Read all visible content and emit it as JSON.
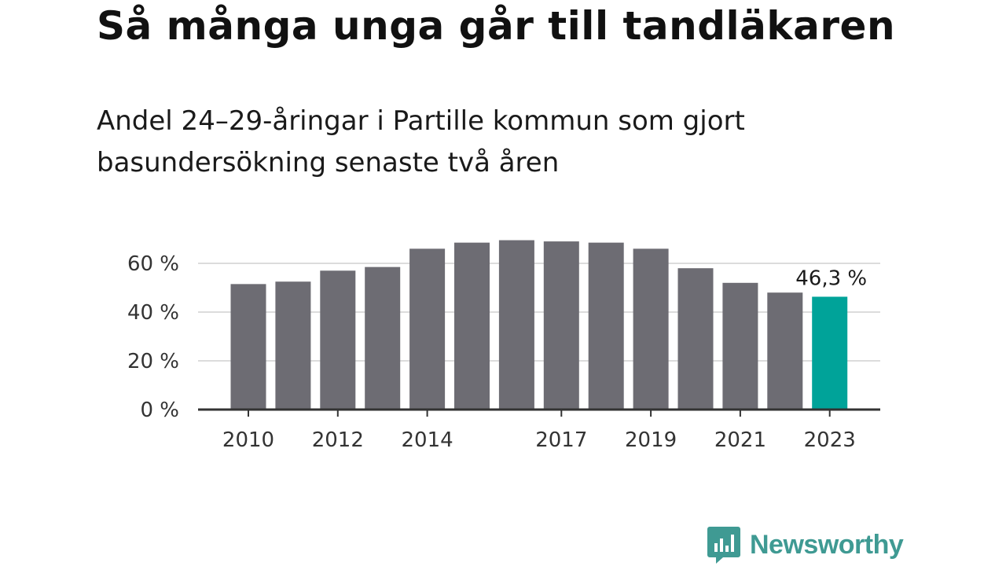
{
  "chart_data": {
    "type": "bar",
    "title": "Så många unga går till tandläkaren",
    "subtitle": "Andel 24–29-åringar i Partille kommun som gjort basundersökning senaste två åren",
    "xlabel": "",
    "ylabel": "",
    "categories": [
      "2010",
      "2011",
      "2012",
      "2013",
      "2014",
      "2015",
      "2016",
      "2017",
      "2018",
      "2019",
      "2020",
      "2021",
      "2022",
      "2023"
    ],
    "values": [
      51.5,
      52.5,
      57,
      58.5,
      66,
      68.5,
      69.5,
      69,
      68.5,
      66,
      58,
      52,
      48,
      46.3
    ],
    "x_tick_labels": [
      "2010",
      "2012",
      "2014",
      "2017",
      "2019",
      "2021",
      "2023"
    ],
    "y_ticks": [
      0,
      20,
      40,
      60
    ],
    "y_tick_labels": [
      "0 %",
      "20 %",
      "40 %",
      "60 %"
    ],
    "ylim": [
      0,
      70
    ],
    "grid": true,
    "highlight": {
      "category": "2023",
      "label": "46,3 %"
    },
    "colors": {
      "bar": "#6d6c73",
      "highlight": "#00a399",
      "grid": "#dcdcdc",
      "axis": "#333333"
    }
  },
  "brand": {
    "name": "Newsworthy",
    "icon": "newsworthy-logo-icon",
    "color": "#3f9a93"
  }
}
